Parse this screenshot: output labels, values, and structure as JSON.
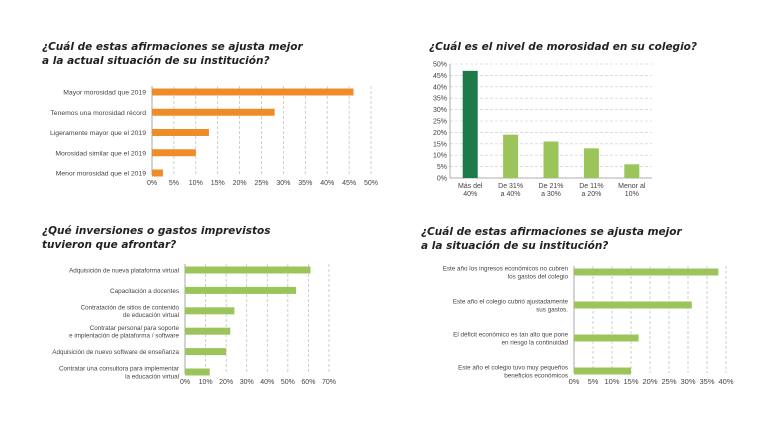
{
  "chart_data": [
    {
      "type": "bar",
      "orientation": "horizontal",
      "title": "¿Cuál de estas afirmaciones se ajusta mejor a la actual situación de su institución?",
      "title_lines": [
        "¿Cuál de estas afirmaciones se ajusta mejor",
        "a la actual situación de su institución?"
      ],
      "categories": [
        [
          "Mayor morosidad que 2019"
        ],
        [
          "Tenemos una morosidad récord"
        ],
        [
          "Ligeramente mayor que el 2019"
        ],
        [
          "Morosidad similar que el 2019"
        ],
        [
          "Menor morosidad que el 2019"
        ]
      ],
      "values": [
        46,
        28,
        13,
        10,
        2.5
      ],
      "xlim": [
        0,
        50
      ],
      "ticks": [
        0,
        5,
        10,
        15,
        20,
        25,
        30,
        35,
        40,
        45,
        50
      ],
      "tick_labels": [
        "0%",
        "5%",
        "10%",
        "15%",
        "20%",
        "25%",
        "30%",
        "35%",
        "40%",
        "45%",
        "50%"
      ],
      "color": "#f08c28",
      "grid": true
    },
    {
      "type": "bar",
      "orientation": "vertical",
      "title": "¿Cuál es el nivel de morosidad en su colegio?",
      "title_lines": [
        "¿Cuál es el nivel de morosidad en su colegio?"
      ],
      "categories": [
        [
          "Más del",
          "40%"
        ],
        [
          "De 31%",
          "a 40%"
        ],
        [
          "De 21%",
          "a 30%"
        ],
        [
          "De 11%",
          "a 20%"
        ],
        [
          "Menor al",
          "10%"
        ]
      ],
      "values": [
        47,
        19,
        16,
        13,
        6
      ],
      "ylim": [
        0,
        50
      ],
      "ticks": [
        0,
        5,
        10,
        15,
        20,
        25,
        30,
        35,
        40,
        45,
        50
      ],
      "tick_labels": [
        "0%",
        "5%",
        "10%",
        "15%",
        "20%",
        "25%",
        "30%",
        "35%",
        "40%",
        "45%",
        "50%"
      ],
      "colors": [
        "#1f7a4a",
        "#9bc45a",
        "#9bc45a",
        "#9bc45a",
        "#9bc45a"
      ],
      "grid": true
    },
    {
      "type": "bar",
      "orientation": "horizontal",
      "title": "¿Qué inversiones o gastos imprevistos tuvieron que afrontar?",
      "title_lines": [
        "¿Qué inversiones o gastos imprevistos",
        "tuvieron que afrontar?"
      ],
      "categories": [
        [
          "Adquisición de nueva plataforma virtual"
        ],
        [
          "Capacitación a docentes"
        ],
        [
          "Contratación de sitios de contenido",
          "de educación virtual"
        ],
        [
          "Contratar personal para soporte",
          "e implentación de plataforma / software"
        ],
        [
          "Adquisición de nuevo software de enseñanza"
        ],
        [
          "Contratar una consultora para implementar",
          "la educación virtual"
        ]
      ],
      "values": [
        61,
        54,
        24,
        22,
        20,
        12
      ],
      "xlim": [
        0,
        70
      ],
      "ticks": [
        0,
        10,
        20,
        30,
        40,
        50,
        60,
        70
      ],
      "tick_labels": [
        "0%",
        "10%",
        "20%",
        "30%",
        "40%",
        "50%",
        "60%",
        "70%"
      ],
      "color": "#9bc45a",
      "grid": true
    },
    {
      "type": "bar",
      "orientation": "horizontal",
      "title": "¿Cuál de estas afirmaciones se ajusta mejor a la situación de su institución?",
      "title_lines": [
        "¿Cuál de estas afirmaciones se ajusta mejor",
        "a la situación de su institución?"
      ],
      "categories": [
        [
          "Este año los ingresos económicos no cubren",
          "los gastos del colegio"
        ],
        [
          "Este año el colegio cubrió ajustadamente",
          "sus gastos."
        ],
        [
          "El déficit económico es tan alto que pone",
          "en riesgo la continuidad"
        ],
        [
          "Este año el colegio tuvo muy pequeños",
          "beneficios económicos"
        ]
      ],
      "values": [
        38,
        31,
        17,
        15
      ],
      "xlim": [
        0,
        40
      ],
      "ticks": [
        0,
        5,
        10,
        15,
        20,
        25,
        30,
        35,
        40
      ],
      "tick_labels": [
        "0%",
        "5%",
        "10%",
        "15%",
        "20%",
        "25%",
        "30%",
        "35%",
        "40%"
      ],
      "color": "#9bc45a",
      "grid": true
    }
  ]
}
